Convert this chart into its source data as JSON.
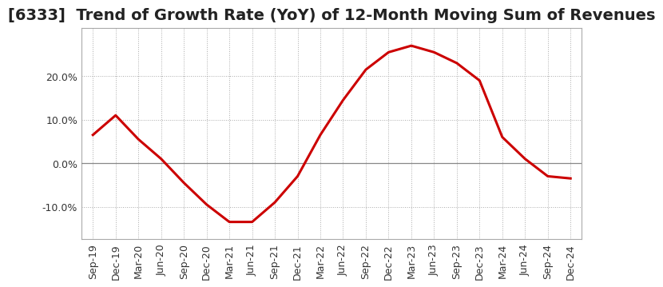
{
  "title": "[6333]  Trend of Growth Rate (YoY) of 12-Month Moving Sum of Revenues",
  "line_color": "#cc0000",
  "background_color": "#ffffff",
  "x_labels": [
    "Sep-19",
    "Dec-19",
    "Mar-20",
    "Jun-20",
    "Sep-20",
    "Dec-20",
    "Mar-21",
    "Jun-21",
    "Sep-21",
    "Dec-21",
    "Mar-22",
    "Jun-22",
    "Sep-22",
    "Dec-22",
    "Mar-23",
    "Jun-23",
    "Sep-23",
    "Dec-23",
    "Mar-24",
    "Jun-24",
    "Sep-24",
    "Dec-24"
  ],
  "y_values": [
    0.065,
    0.11,
    0.055,
    0.01,
    -0.045,
    -0.095,
    -0.135,
    -0.135,
    -0.09,
    -0.03,
    0.065,
    0.145,
    0.215,
    0.255,
    0.27,
    0.255,
    0.23,
    0.19,
    0.06,
    0.01,
    -0.03,
    -0.035
  ],
  "yticks": [
    -0.1,
    0.0,
    0.1,
    0.2
  ],
  "ylim": [
    -0.175,
    0.31
  ],
  "grid_color": "#aaaaaa",
  "zero_line_color": "#888888",
  "title_fontsize": 14,
  "tick_fontsize": 9,
  "line_width": 2.2,
  "spine_color": "#aaaaaa"
}
